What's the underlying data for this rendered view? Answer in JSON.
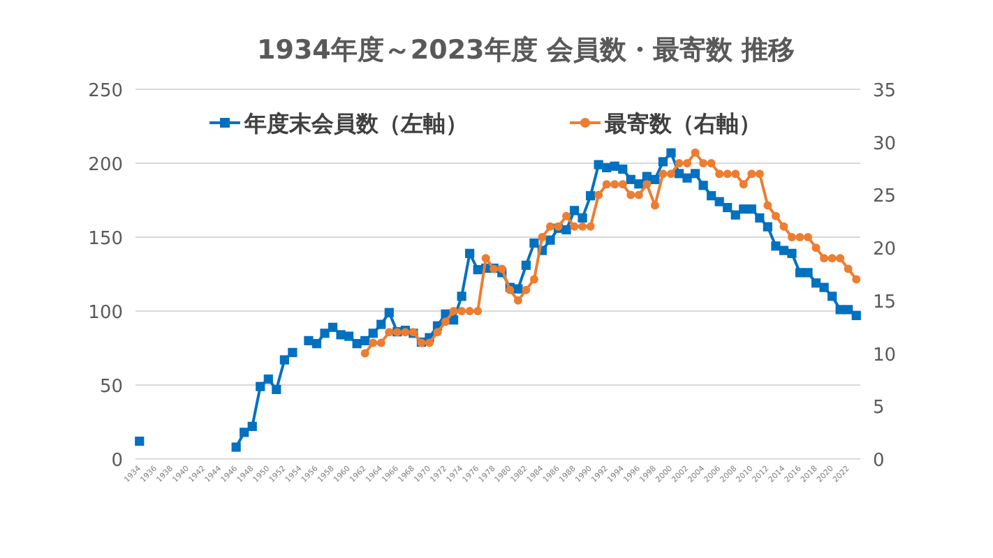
{
  "chart_data": {
    "type": "line",
    "title": "1934年度～2023年度 会員数・最寄数 推移",
    "categories": [
      "1934",
      null,
      "1936",
      null,
      "1938",
      null,
      "1940",
      null,
      "1942",
      null,
      "1944",
      null,
      "1946",
      null,
      "1948",
      null,
      "1950",
      null,
      "1952",
      null,
      "1954",
      null,
      "1956",
      null,
      "1958",
      null,
      "1960",
      null,
      "1962",
      null,
      "1964",
      null,
      "1966",
      null,
      "1968",
      null,
      "1970",
      null,
      "1972",
      null,
      "1974",
      null,
      "1976",
      null,
      "1978",
      null,
      "1980",
      null,
      "1982",
      null,
      "1984",
      null,
      "1986",
      null,
      "1988",
      null,
      "1990",
      null,
      "1992",
      null,
      "1994",
      null,
      "1996",
      null,
      "1998",
      null,
      "2000",
      null,
      "2002",
      null,
      "2004",
      null,
      "2006",
      null,
      "2008",
      null,
      "2010",
      null,
      "2012",
      null,
      "2014",
      null,
      "2016",
      null,
      "2018",
      null,
      "2020",
      null,
      "2022",
      null
    ],
    "series": [
      {
        "name": "年度末会員数（左軸）",
        "color": "#0070c0",
        "marker": "square",
        "values": [
          12,
          null,
          null,
          null,
          null,
          null,
          null,
          null,
          null,
          null,
          null,
          null,
          8,
          18,
          22,
          49,
          54,
          47,
          67,
          72,
          null,
          80,
          78,
          85,
          89,
          84,
          83,
          78,
          80,
          85,
          91,
          99,
          86,
          87,
          85,
          79,
          82,
          90,
          98,
          94,
          110,
          139,
          128,
          129,
          129,
          126,
          116,
          115,
          131,
          146,
          141,
          148,
          156,
          155,
          168,
          163,
          178,
          199,
          197,
          198,
          196,
          189,
          186,
          191,
          189,
          201,
          207,
          193,
          190,
          193,
          185,
          178,
          174,
          170,
          165,
          169,
          169,
          163,
          157,
          144,
          141,
          139,
          126,
          126,
          119,
          116,
          110,
          101,
          101,
          97
        ]
      },
      {
        "name": "最寄数（右軸）",
        "color": "#ed7d31",
        "marker": "circle",
        "axis": "y2",
        "values": [
          null,
          null,
          null,
          null,
          null,
          null,
          null,
          null,
          null,
          null,
          null,
          null,
          null,
          null,
          null,
          null,
          null,
          null,
          null,
          null,
          null,
          null,
          null,
          null,
          null,
          null,
          null,
          null,
          10,
          11,
          11,
          12,
          12,
          12,
          12,
          11,
          11,
          12,
          13,
          14,
          14,
          14,
          14,
          19,
          18,
          18,
          16,
          15,
          16,
          17,
          21,
          22,
          22,
          23,
          22,
          22,
          22,
          25,
          26,
          26,
          26,
          25,
          25,
          26,
          24,
          27,
          27,
          28,
          28,
          29,
          28,
          28,
          27,
          27,
          27,
          26,
          27,
          27,
          24,
          23,
          22,
          21,
          21,
          21,
          20,
          19,
          19,
          19,
          18,
          17
        ]
      }
    ],
    "ylim": [
      0,
      250
    ],
    "yticks": [
      0,
      50,
      100,
      150,
      200,
      250
    ],
    "y2lim": [
      0,
      35
    ],
    "y2ticks": [
      0,
      5,
      10,
      15,
      20,
      25,
      30,
      35
    ],
    "grid": "y",
    "legend": "top"
  }
}
